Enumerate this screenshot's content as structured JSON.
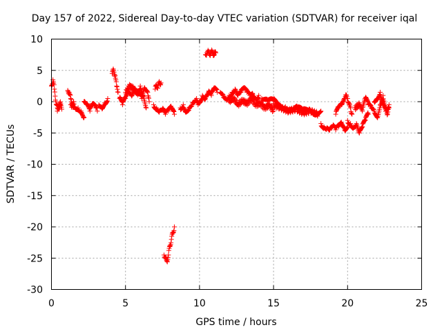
{
  "chart_data": {
    "type": "scatter",
    "title": "Day 157 of 2022, Sidereal Day-to-day VTEC variation (SDTVAR) for receiver iqal",
    "xlabel": "GPS time / hours",
    "ylabel": "SDTVAR / TECUs",
    "xlim": [
      0,
      25
    ],
    "ylim": [
      -30,
      10
    ],
    "xticks": [
      0,
      5,
      10,
      15,
      20,
      25
    ],
    "yticks": [
      -30,
      -25,
      -20,
      -15,
      -10,
      -5,
      0,
      5,
      10
    ],
    "grid": true,
    "marker": "+",
    "color": "#ff0000",
    "segments": [
      {
        "x": [
          0.0,
          0.1,
          0.2,
          0.3,
          0.4,
          0.5,
          0.6
        ],
        "y": [
          2.5,
          3.5,
          2.0,
          0.0,
          -1.0,
          -0.5,
          0.0
        ]
      },
      {
        "x": [
          0.4,
          0.5,
          0.6,
          0.7
        ],
        "y": [
          -1.5,
          -1.0,
          -0.5,
          -1.2
        ]
      },
      {
        "x": [
          1.1,
          1.2,
          1.3,
          1.4,
          1.5
        ],
        "y": [
          1.8,
          1.5,
          0.5,
          -0.5,
          0.0
        ]
      },
      {
        "x": [
          1.3,
          1.6,
          1.8,
          2.0,
          2.2
        ],
        "y": [
          -0.5,
          -0.8,
          -1.0,
          -1.5,
          -2.5
        ]
      },
      {
        "x": [
          2.2,
          2.4,
          2.6,
          2.8,
          3.0,
          3.1
        ],
        "y": [
          0.0,
          -0.5,
          -1.5,
          -0.5,
          -1.0,
          -1.5
        ]
      },
      {
        "x": [
          3.2,
          3.4,
          3.6,
          3.8
        ],
        "y": [
          -0.5,
          -1.0,
          -0.2,
          0.5
        ]
      },
      {
        "x": [
          4.1,
          4.2,
          4.3,
          4.4,
          4.5
        ],
        "y": [
          4.5,
          5.0,
          4.2,
          2.5,
          1.5
        ]
      },
      {
        "x": [
          4.6,
          4.8,
          5.0,
          5.2,
          5.4,
          5.6,
          5.8,
          6.0,
          6.2,
          6.4
        ],
        "y": [
          0.5,
          -0.5,
          0.5,
          1.5,
          1.0,
          2.0,
          1.5,
          2.5,
          1.0,
          -1.0
        ]
      },
      {
        "x": [
          5.0,
          5.3,
          5.6,
          5.9,
          6.1,
          6.3,
          6.5,
          6.6
        ],
        "y": [
          1.5,
          2.5,
          2.0,
          1.2,
          0.5,
          2.2,
          1.5,
          0.0
        ]
      },
      {
        "x": [
          7.0,
          7.1,
          7.2,
          7.3,
          7.4
        ],
        "y": [
          2.0,
          2.5,
          2.5,
          3.0,
          3.0
        ]
      },
      {
        "x": [
          6.9,
          7.1,
          7.3,
          7.5,
          7.7,
          7.9,
          8.1,
          8.3
        ],
        "y": [
          -0.5,
          -1.0,
          -1.5,
          -1.2,
          -2.0,
          -1.5,
          -1.0,
          -2.0
        ]
      },
      {
        "x": [
          7.6,
          7.7,
          7.8,
          7.9,
          8.0,
          8.1,
          8.2,
          8.3
        ],
        "y": [
          -24.5,
          -25.0,
          -25.5,
          -24.5,
          -23.0,
          -22.0,
          -21.0,
          -20.0
        ]
      },
      {
        "x": [
          8.7,
          8.9,
          9.1,
          9.3,
          9.5,
          9.7,
          9.9
        ],
        "y": [
          -1.0,
          -0.5,
          -1.5,
          -1.0,
          -0.5,
          0.0,
          -0.5
        ]
      },
      {
        "x": [
          9.8,
          10.0,
          10.2,
          10.4,
          10.6,
          10.8,
          11.0,
          11.2
        ],
        "y": [
          0.5,
          0.0,
          1.0,
          0.5,
          1.5,
          1.0,
          2.0,
          1.5
        ]
      },
      {
        "x": [
          10.4,
          10.5,
          10.6,
          10.7,
          10.8,
          10.9,
          11.0,
          11.1
        ],
        "y": [
          7.5,
          7.8,
          8.0,
          7.5,
          8.0,
          7.8,
          7.5,
          7.8
        ]
      },
      {
        "x": [
          11.4,
          11.6,
          11.8,
          12.0,
          12.2,
          12.4,
          12.6,
          12.8,
          13.0,
          13.2,
          13.4,
          13.6,
          13.8,
          14.0
        ],
        "y": [
          1.5,
          1.0,
          0.5,
          1.0,
          1.5,
          2.0,
          1.0,
          1.5,
          2.0,
          1.5,
          1.0,
          1.2,
          0.5,
          1.0
        ]
      },
      {
        "x": [
          12.0,
          12.3,
          12.6,
          12.9,
          13.2,
          13.5,
          13.8,
          14.1,
          14.4,
          14.7,
          15.0
        ],
        "y": [
          0.0,
          0.5,
          -0.5,
          0.2,
          -0.3,
          0.5,
          -0.5,
          -0.2,
          -1.0,
          -0.5,
          -1.5
        ]
      },
      {
        "x": [
          14.2,
          14.6,
          15.0,
          15.4,
          15.8,
          16.2,
          16.6,
          17.0,
          17.4,
          17.8,
          18.2
        ],
        "y": [
          0.5,
          0.0,
          0.2,
          -0.5,
          -0.8,
          -1.2,
          -1.0,
          -1.5,
          -1.2,
          -1.8,
          -1.5
        ]
      },
      {
        "x": [
          15.0,
          15.5,
          16.0,
          16.5,
          17.0,
          17.5,
          18.0
        ],
        "y": [
          -0.5,
          -1.0,
          -1.5,
          -1.2,
          -1.8,
          -1.5,
          -2.0
        ]
      },
      {
        "x": [
          18.2,
          18.4,
          18.6,
          18.8,
          19.0,
          19.2,
          19.4,
          19.6,
          19.8,
          20.0
        ],
        "y": [
          -3.5,
          -4.0,
          -4.2,
          -4.5,
          -4.0,
          -4.5,
          -4.0,
          -3.5,
          -4.5,
          -4.0
        ]
      },
      {
        "x": [
          19.2,
          19.4,
          19.6,
          19.8,
          19.9,
          20.0,
          20.1,
          20.2,
          20.3
        ],
        "y": [
          -2.0,
          -1.0,
          -0.5,
          0.5,
          1.0,
          0.5,
          -0.5,
          -1.0,
          -2.0
        ]
      },
      {
        "x": [
          20.0,
          20.2,
          20.4,
          20.6,
          20.8,
          21.0,
          21.2,
          21.4
        ],
        "y": [
          -3.0,
          -3.5,
          -4.0,
          -3.5,
          -5.0,
          -4.0,
          -3.0,
          -2.0
        ]
      },
      {
        "x": [
          20.5,
          20.8,
          21.0,
          21.2,
          21.4,
          21.6,
          21.8,
          22.0,
          22.2,
          22.4,
          22.6,
          22.8
        ],
        "y": [
          -1.0,
          -0.5,
          -1.5,
          0.5,
          -0.5,
          -1.0,
          -1.5,
          -2.5,
          -0.5,
          1.0,
          -1.5,
          -0.5
        ]
      },
      {
        "x": [
          21.8,
          22.0,
          22.2,
          22.4,
          22.6,
          22.7,
          22.8
        ],
        "y": [
          0.0,
          0.5,
          1.5,
          0.0,
          -1.0,
          -2.0,
          -1.0
        ]
      }
    ]
  }
}
